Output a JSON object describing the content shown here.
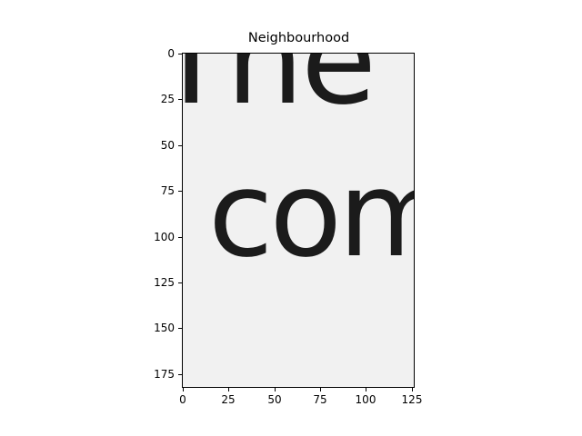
{
  "figure": {
    "title": "Neighbourhood",
    "image_text": [
      "The",
      "com"
    ],
    "y_ticks": [
      "0",
      "25",
      "50",
      "75",
      "100",
      "125",
      "150",
      "175"
    ],
    "x_ticks": [
      "0",
      "25",
      "50",
      "75",
      "100",
      "125"
    ],
    "colors": {
      "background": "#f1f1f1",
      "ink": "#1b1b1b"
    }
  }
}
